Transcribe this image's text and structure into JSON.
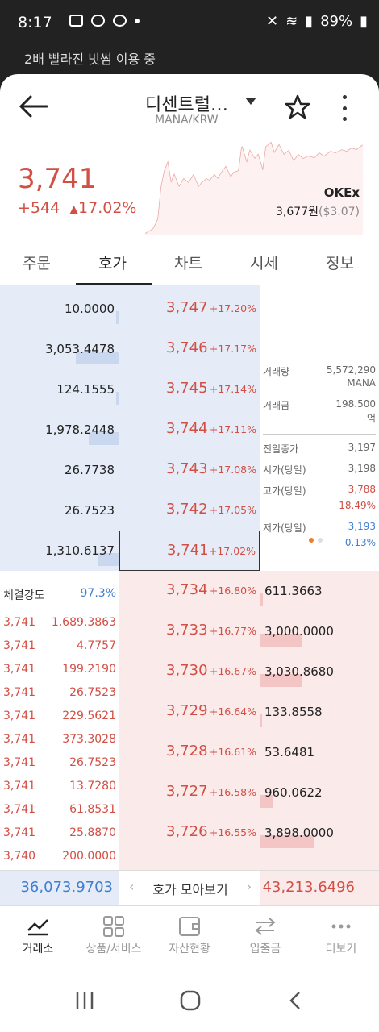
{
  "status": {
    "time": "8:17",
    "battery": "89%"
  },
  "banner": "2배 빨라진 빗썸 이용 중",
  "header": {
    "title": "디센트럴…",
    "subtitle": "MANA/KRW"
  },
  "price": {
    "current": "3,741",
    "change_abs": "+544",
    "change_pct": "17.02%",
    "exchange": "OKEx",
    "exchange_price": "3,677원",
    "exchange_usd": "($3.07)"
  },
  "tabs": [
    "주문",
    "호가",
    "차트",
    "시세",
    "정보"
  ],
  "asks": [
    {
      "vol": "10.0000",
      "price": "3,747",
      "pct": "+17.20%"
    },
    {
      "vol": "3,053.4478",
      "price": "3,746",
      "pct": "+17.17%"
    },
    {
      "vol": "124.1555",
      "price": "3,745",
      "pct": "+17.14%"
    },
    {
      "vol": "1,978.2448",
      "price": "3,744",
      "pct": "+17.11%"
    },
    {
      "vol": "26.7738",
      "price": "3,743",
      "pct": "+17.08%"
    },
    {
      "vol": "26.7523",
      "price": "3,742",
      "pct": "+17.05%"
    },
    {
      "vol": "1,310.6137",
      "price": "3,741",
      "pct": "+17.02%"
    }
  ],
  "bids": [
    {
      "vol": "611.3663",
      "price": "3,734",
      "pct": "+16.80%"
    },
    {
      "vol": "3,000.0000",
      "price": "3,733",
      "pct": "+16.77%"
    },
    {
      "vol": "3,030.8680",
      "price": "3,730",
      "pct": "+16.67%"
    },
    {
      "vol": "133.8558",
      "price": "3,729",
      "pct": "+16.64%"
    },
    {
      "vol": "53.6481",
      "price": "3,728",
      "pct": "+16.61%"
    },
    {
      "vol": "960.0622",
      "price": "3,727",
      "pct": "+16.58%"
    },
    {
      "vol": "3,898.0000",
      "price": "3,726",
      "pct": "+16.55%"
    }
  ],
  "info": {
    "volume_label": "거래량",
    "volume": "5,572,290",
    "volume_unit": "MANA",
    "amount_label": "거래금",
    "amount": "198.500",
    "amount_unit": "억",
    "prev_close_label": "전일종가",
    "prev_close": "3,197",
    "open_label": "시가(당일)",
    "open": "3,198",
    "high_label": "고가(당일)",
    "high": "3,788",
    "high_pct": "18.49%",
    "low_label": "저가(당일)",
    "low": "3,193",
    "low_pct": "-0.13%"
  },
  "strength": {
    "label": "체결강도",
    "value": "97.3%"
  },
  "trades": [
    {
      "p": "3,741",
      "v": "1,689.3863"
    },
    {
      "p": "3,741",
      "v": "4.7757"
    },
    {
      "p": "3,741",
      "v": "199.2190"
    },
    {
      "p": "3,741",
      "v": "26.7523"
    },
    {
      "p": "3,741",
      "v": "229.5621"
    },
    {
      "p": "3,741",
      "v": "373.3028"
    },
    {
      "p": "3,741",
      "v": "26.7523"
    },
    {
      "p": "3,741",
      "v": "13.7280"
    },
    {
      "p": "3,741",
      "v": "61.8531"
    },
    {
      "p": "3,741",
      "v": "25.8870"
    },
    {
      "p": "3,740",
      "v": "200.0000"
    }
  ],
  "summary": {
    "ask_total": "36,073.9703",
    "bid_total": "43,213.6496",
    "center": "호가 모아보기"
  },
  "nav": [
    "거래소",
    "상품/서비스",
    "자산현황",
    "입출금",
    "더보기"
  ]
}
